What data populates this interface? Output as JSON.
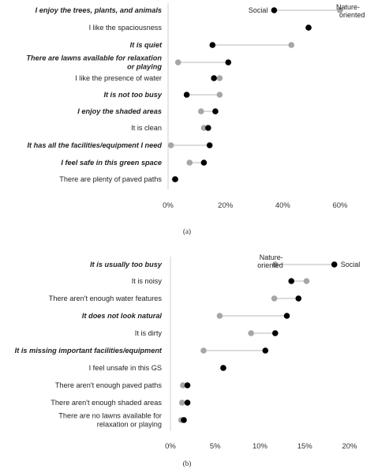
{
  "chart_data": [
    {
      "type": "dot-plot",
      "caption": "(a)",
      "title": "",
      "xlabel": "",
      "ylabel": "",
      "xlim": [
        0,
        0.6
      ],
      "x_ticks": [
        "0%",
        "20%",
        "40%",
        "60%"
      ],
      "legend": "inline-labels-top-right",
      "series": [
        {
          "name": "Social",
          "color": "#000000"
        },
        {
          "name": "Nature-oriented",
          "color": "#a6a6a6"
        }
      ],
      "categories": [
        {
          "label": "I enjoy the trees, plants, and animals",
          "bold": true,
          "social": 0.37,
          "nature": 0.6
        },
        {
          "label": "I like the spaciousness",
          "bold": false,
          "social": 0.49,
          "nature": 0.49
        },
        {
          "label": "It is quiet",
          "bold": true,
          "social": 0.155,
          "nature": 0.43
        },
        {
          "label": "There are lawns available for relaxation or playing",
          "bold": true,
          "social": 0.21,
          "nature": 0.035
        },
        {
          "label": "I like the presence of water",
          "bold": false,
          "social": 0.16,
          "nature": 0.18
        },
        {
          "label": "It is not too busy",
          "bold": true,
          "social": 0.065,
          "nature": 0.18
        },
        {
          "label": "I enjoy the shaded areas",
          "bold": true,
          "social": 0.165,
          "nature": 0.115
        },
        {
          "label": "It is clean",
          "bold": false,
          "social": 0.14,
          "nature": 0.125
        },
        {
          "label": "It has all the facilities/equipment I need",
          "bold": true,
          "social": 0.145,
          "nature": 0.01
        },
        {
          "label": "I feel safe in this green space",
          "bold": true,
          "social": 0.125,
          "nature": 0.075
        },
        {
          "label": "There are plenty of paved paths",
          "bold": false,
          "social": 0.025,
          "nature": 0.023
        }
      ]
    },
    {
      "type": "dot-plot",
      "caption": "(b)",
      "title": "",
      "xlabel": "",
      "ylabel": "",
      "xlim": [
        0,
        0.2
      ],
      "x_ticks": [
        "0%",
        "5%",
        "10%",
        "15%",
        "20%"
      ],
      "legend": "inline-labels-top-right",
      "series": [
        {
          "name": "Social",
          "color": "#000000"
        },
        {
          "name": "Nature-oriented",
          "color": "#a6a6a6"
        }
      ],
      "categories": [
        {
          "label": "It is usually too busy",
          "bold": true,
          "social": 0.183,
          "nature": 0.117
        },
        {
          "label": "It is noisy",
          "bold": false,
          "social": 0.135,
          "nature": 0.152
        },
        {
          "label": "There aren't enough water features",
          "bold": false,
          "social": 0.143,
          "nature": 0.116
        },
        {
          "label": "It does not look natural",
          "bold": true,
          "social": 0.13,
          "nature": 0.055
        },
        {
          "label": "It is dirty",
          "bold": false,
          "social": 0.117,
          "nature": 0.09
        },
        {
          "label": "It is missing important facilities/equipment",
          "bold": true,
          "social": 0.106,
          "nature": 0.037
        },
        {
          "label": "I feel unsafe in this GS",
          "bold": false,
          "social": 0.059,
          "nature": 0.059
        },
        {
          "label": "There aren't enough paved paths",
          "bold": false,
          "social": 0.019,
          "nature": 0.014
        },
        {
          "label": "There aren't enough shaded areas",
          "bold": false,
          "social": 0.019,
          "nature": 0.013
        },
        {
          "label": "There are no lawns available for relaxation or playing",
          "bold": false,
          "social": 0.015,
          "nature": 0.012
        }
      ]
    }
  ]
}
